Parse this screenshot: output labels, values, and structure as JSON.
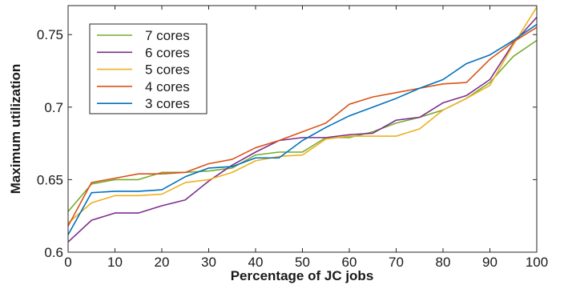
{
  "chart_data": {
    "type": "line",
    "xlabel": "Percentage of JC jobs",
    "ylabel": "Maximum utilization",
    "xlim": [
      0,
      100
    ],
    "ylim": [
      0.6,
      0.77
    ],
    "xticks": [
      0,
      10,
      20,
      30,
      40,
      50,
      60,
      70,
      80,
      90,
      100
    ],
    "xtick_labels": [
      "0",
      "10",
      "20",
      "30",
      "40",
      "50",
      "60",
      "70",
      "80",
      "90",
      "100"
    ],
    "yticks": [
      0.6,
      0.65,
      0.7,
      0.75
    ],
    "ytick_labels": [
      "0.6",
      "0.65",
      "0.7",
      "0.75"
    ],
    "grid": false,
    "legend_position": "top-left",
    "x": [
      0,
      5,
      10,
      15,
      20,
      25,
      30,
      35,
      40,
      45,
      50,
      55,
      60,
      65,
      70,
      75,
      80,
      85,
      90,
      95,
      100
    ],
    "series": [
      {
        "name": "7 cores",
        "color": "#77ac30",
        "values": [
          0.628,
          0.647,
          0.65,
          0.65,
          0.655,
          0.655,
          0.656,
          0.658,
          0.667,
          0.669,
          0.669,
          0.679,
          0.679,
          0.683,
          0.689,
          0.693,
          0.698,
          0.706,
          0.717,
          0.735,
          0.746
        ]
      },
      {
        "name": "6 cores",
        "color": "#7e2f8e",
        "values": [
          0.607,
          0.622,
          0.627,
          0.627,
          0.632,
          0.636,
          0.649,
          0.66,
          0.669,
          0.677,
          0.679,
          0.679,
          0.681,
          0.682,
          0.691,
          0.693,
          0.703,
          0.708,
          0.719,
          0.744,
          0.762
        ]
      },
      {
        "name": "5 cores",
        "color": "#edb120",
        "values": [
          0.62,
          0.634,
          0.639,
          0.639,
          0.64,
          0.648,
          0.65,
          0.655,
          0.663,
          0.666,
          0.667,
          0.678,
          0.68,
          0.68,
          0.68,
          0.685,
          0.698,
          0.706,
          0.715,
          0.743,
          0.769
        ]
      },
      {
        "name": "4 cores",
        "color": "#d95319",
        "values": [
          0.618,
          0.648,
          0.651,
          0.654,
          0.654,
          0.655,
          0.661,
          0.664,
          0.672,
          0.677,
          0.683,
          0.689,
          0.702,
          0.707,
          0.71,
          0.713,
          0.716,
          0.717,
          0.733,
          0.745,
          0.755
        ]
      },
      {
        "name": "3 cores",
        "color": "#0072bd",
        "values": [
          0.612,
          0.641,
          0.642,
          0.642,
          0.643,
          0.652,
          0.658,
          0.659,
          0.665,
          0.665,
          0.677,
          0.686,
          0.694,
          0.7,
          0.706,
          0.713,
          0.719,
          0.73,
          0.736,
          0.746,
          0.757
        ]
      }
    ]
  }
}
